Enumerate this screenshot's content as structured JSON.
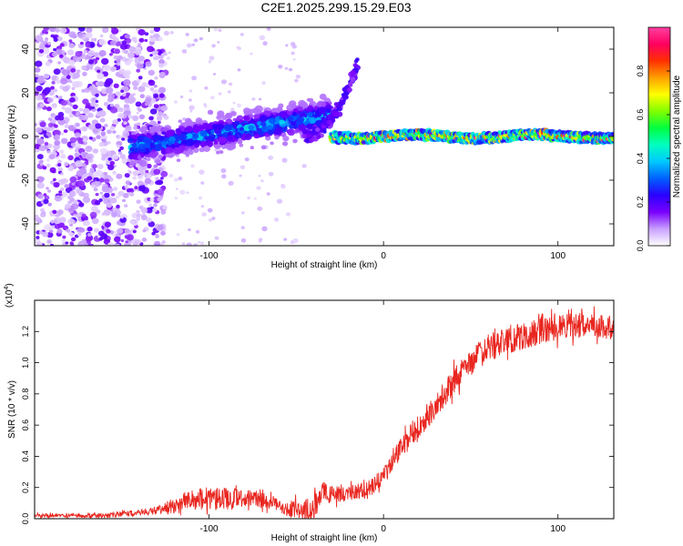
{
  "figure_title": "C2E1.2025.299.15.29.E03",
  "colors": {
    "snr_line": "#e8261f",
    "axis": "#000000",
    "spec_dot_low": "#6a1be8",
    "spec_dot_mid": "#00d4ff",
    "spec_dot_high": "#ff2020"
  },
  "chart_data": [
    {
      "type": "heatmap",
      "name": "spectrogram",
      "xlabel": "Height of straight line (km)",
      "ylabel": "Frequency (Hz)",
      "xlim": [
        -200,
        132
      ],
      "ylim": [
        -50,
        50
      ],
      "xticks": [
        -100,
        0,
        100
      ],
      "yticks": [
        -40,
        -20,
        0,
        20,
        40
      ],
      "colorbar": {
        "label": "Normalized spectral amplitude",
        "range": [
          0,
          1
        ],
        "ticks": [
          "0.0",
          "0.2",
          "0.4",
          "0.6",
          "0.8"
        ],
        "tick_values": [
          0,
          0.2,
          0.4,
          0.6,
          0.8
        ],
        "colormap": [
          "#ffffff",
          "#c8a0ff",
          "#7a00ff",
          "#2a00ff",
          "#0060ff",
          "#00c8ff",
          "#00ffc0",
          "#00ff40",
          "#80ff00",
          "#ffff00",
          "#ffa000",
          "#ff3000",
          "#ff0060",
          "#ff40a0"
        ]
      },
      "features": {
        "noise_region_x": [
          -200,
          -130
        ],
        "main_band": {
          "x": [
            -145,
            -30
          ],
          "freq_start": -5,
          "freq_end": 10,
          "width_hz": 8
        },
        "rising_branch": {
          "x": [
            -45,
            -15
          ],
          "freq_start": 0,
          "freq_end": 32
        },
        "stable_line": {
          "x": [
            -30,
            132
          ],
          "freq": 0,
          "peak_amplitude": 0.95
        }
      }
    },
    {
      "type": "line",
      "name": "snr",
      "xlabel": "Height of straight line (km)",
      "ylabel": "SNR (10 * v/v)",
      "scale_label": "(x10",
      "scale_exponent": "4",
      "xlim": [
        -200,
        132
      ],
      "ylim": [
        0,
        1.4
      ],
      "xticks": [
        -100,
        0,
        100
      ],
      "yticks": [
        "0.0",
        "0.2",
        "0.4",
        "0.6",
        "0.8",
        "1.0",
        "1.2"
      ],
      "ytick_values": [
        0,
        0.2,
        0.4,
        0.6,
        0.8,
        1.0,
        1.2
      ],
      "trend": {
        "x": [
          -200,
          -160,
          -140,
          -125,
          -115,
          -100,
          -90,
          -80,
          -70,
          -60,
          -55,
          -50,
          -45,
          -40,
          -35,
          -30,
          -25,
          -20,
          -15,
          -10,
          -5,
          0,
          5,
          10,
          15,
          20,
          30,
          40,
          50,
          60,
          70,
          80,
          90,
          100,
          110,
          120,
          132
        ],
        "y": [
          0.02,
          0.02,
          0.04,
          0.07,
          0.11,
          0.13,
          0.13,
          0.13,
          0.12,
          0.09,
          0.06,
          0.06,
          0.05,
          0.07,
          0.18,
          0.15,
          0.15,
          0.16,
          0.18,
          0.18,
          0.22,
          0.28,
          0.36,
          0.46,
          0.53,
          0.6,
          0.72,
          0.88,
          1.0,
          1.1,
          1.13,
          1.17,
          1.2,
          1.22,
          1.24,
          1.25,
          1.22
        ]
      },
      "noise_amplitude": {
        "x": [
          -200,
          -130,
          -120,
          -100,
          -80,
          -60,
          -40,
          -30,
          -10,
          0,
          20,
          60,
          132
        ],
        "y": [
          0.01,
          0.02,
          0.05,
          0.08,
          0.06,
          0.04,
          0.08,
          0.06,
          0.05,
          0.06,
          0.08,
          0.09,
          0.08
        ]
      }
    }
  ]
}
